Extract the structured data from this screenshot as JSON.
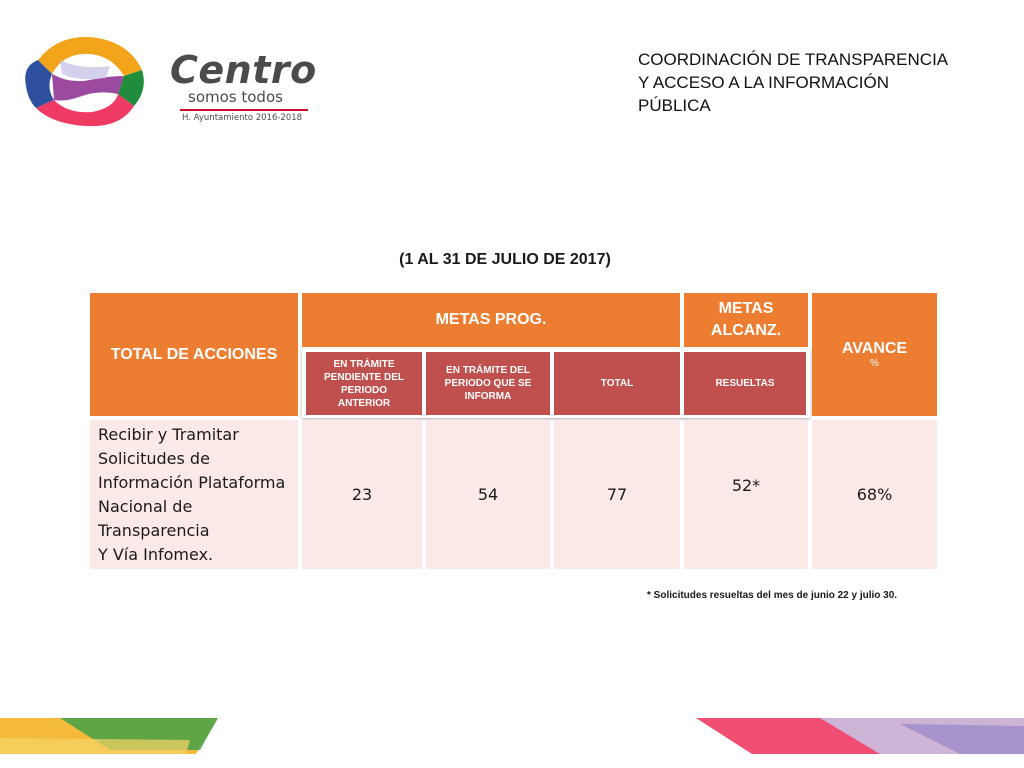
{
  "logo": {
    "word": "Centro",
    "tagline": "somos todos",
    "ayuntamiento": "H. Ayuntamiento 2016-2018",
    "colors": [
      "#ef3b64",
      "#f2a51a",
      "#1f8d3c",
      "#2f4fa1",
      "#8b2a8f"
    ]
  },
  "header": {
    "title_lines": [
      "COORDINACIÓN DE TRANSPARENCIA",
      "Y ACCESO A LA INFORMACIÓN",
      "PÚBLICA"
    ]
  },
  "period": "(1 AL 31 DE JULIO DE 2017)",
  "table": {
    "headers": {
      "total_acciones": "TOTAL DE ACCIONES",
      "metas_prog": "METAS PROG.",
      "metas_alcanz": "METAS ALCANZ.",
      "avance": "AVANCE",
      "avance_unit": "%"
    },
    "subheaders": {
      "pendiente": "EN TRÁMITE PENDIENTE DEL PERIODO ANTERIOR",
      "periodo": "EN TRÁMITE DEL PERIODO QUE SE INFORMA",
      "total": "TOTAL",
      "resueltas": "RESUELTAS"
    },
    "row": {
      "description_lines": [
        "Recibir y Tramitar",
        "Solicitudes de",
        "Información Plataforma",
        "Nacional de",
        "Transparencia",
        "Y Vía Infomex."
      ],
      "pendiente": "23",
      "periodo": "54",
      "total": "77",
      "resueltas": "52*",
      "avance": "68%"
    },
    "colors": {
      "header": "#ed7d31",
      "subheader": "#c0504d",
      "body": "#fbe9e7"
    }
  },
  "footnote": "* Solicitudes resueltas del mes de junio 22 y julio 30."
}
